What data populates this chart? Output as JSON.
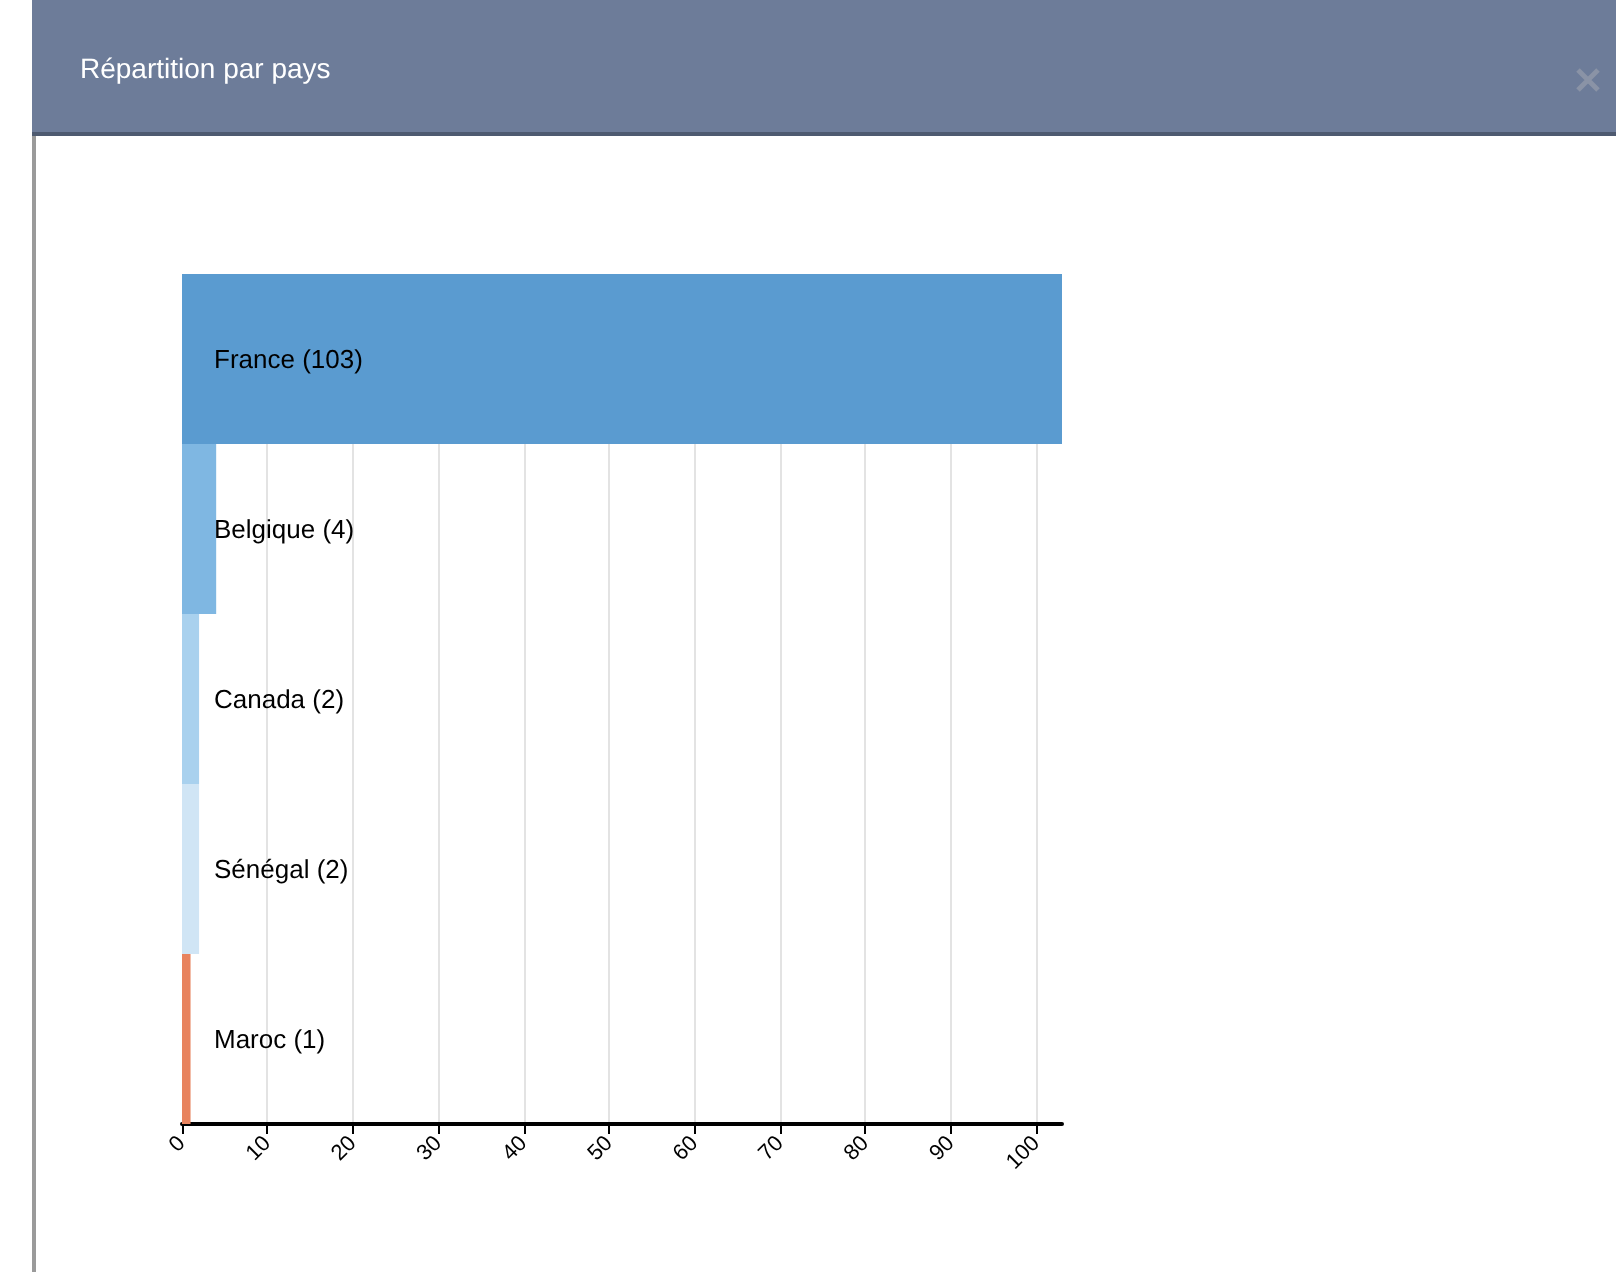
{
  "chart_data": {
    "type": "bar",
    "orientation": "horizontal",
    "title": "Répartition par pays",
    "categories": [
      "France (103)",
      "Belgique (4)",
      "Canada (2)",
      "Sénégal (2)",
      "Maroc (1)"
    ],
    "values": [
      103,
      4,
      2,
      2,
      1
    ],
    "colors": [
      "#5a9bd0",
      "#7fb7e2",
      "#a9d1ee",
      "#d0e5f5",
      "#e8835e"
    ],
    "xlim": [
      0,
      103
    ],
    "xticks": [
      0,
      10,
      20,
      30,
      40,
      50,
      60,
      70,
      80,
      90,
      100
    ],
    "grid": "x"
  }
}
